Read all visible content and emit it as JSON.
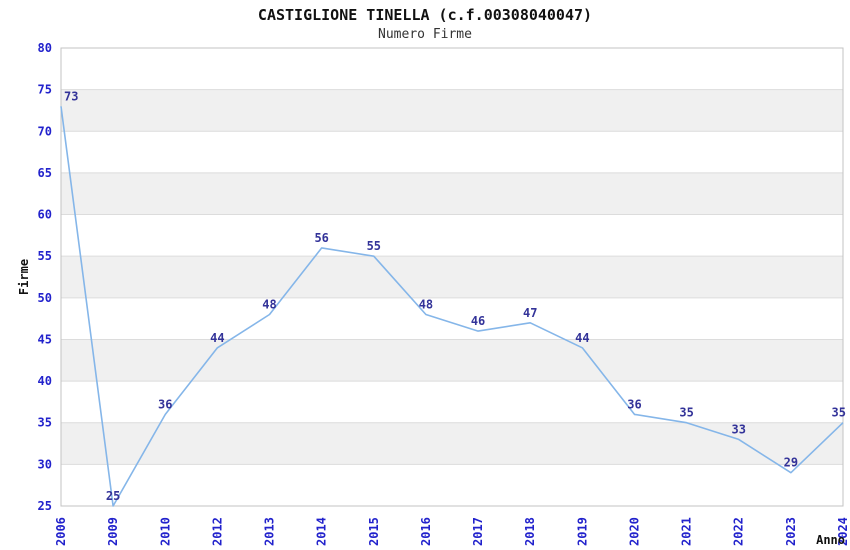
{
  "header": {
    "title": "CASTIGLIONE TINELLA (c.f.00308040047)",
    "subtitle": "Numero Firme"
  },
  "chart_data": {
    "type": "line",
    "title": "CASTIGLIONE TINELLA (c.f.00308040047)",
    "subtitle": "Numero Firme",
    "categories": [
      "2006",
      "2009",
      "2010",
      "2012",
      "2013",
      "2014",
      "2015",
      "2016",
      "2017",
      "2018",
      "2019",
      "2020",
      "2021",
      "2022",
      "2023",
      "2024"
    ],
    "values": [
      73,
      25,
      36,
      44,
      48,
      56,
      55,
      48,
      46,
      47,
      44,
      36,
      35,
      33,
      29,
      35
    ],
    "xlabel": "Anno",
    "ylabel": "Firme",
    "ylim": [
      25,
      80
    ],
    "ytick_step": 5,
    "grid": true,
    "alternating_bands": true,
    "legend": "none",
    "colors": {
      "line": "#85b6e9",
      "data_label": "#333399",
      "tick_label": "#2222cc",
      "band": "#f0f0f0",
      "gridline": "#dcdcdc",
      "border": "#c3c3c3",
      "axis_title": "#111111",
      "background": "#ffffff"
    }
  }
}
